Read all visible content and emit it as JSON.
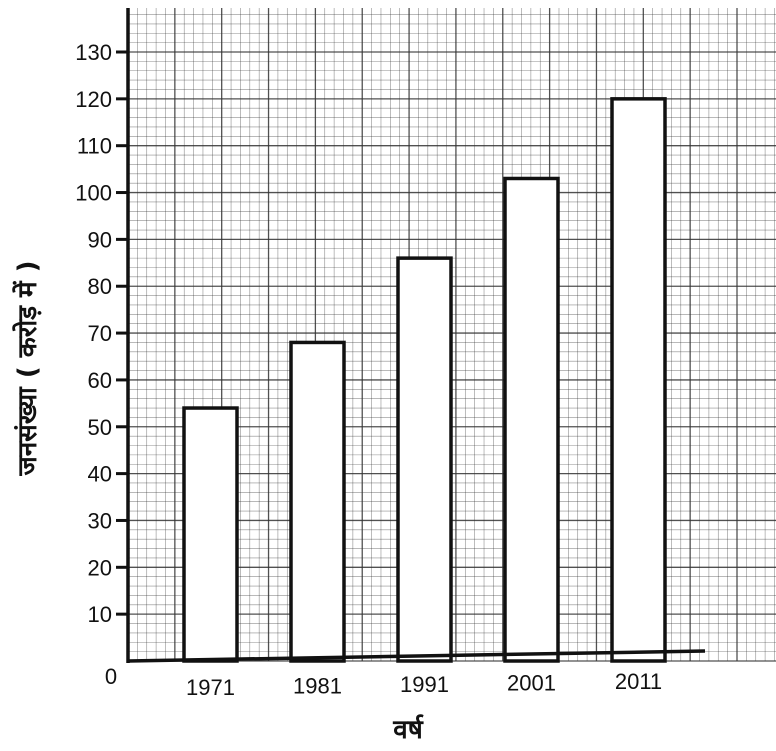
{
  "chart_data": {
    "type": "bar",
    "categories": [
      "1971",
      "1981",
      "1991",
      "2001",
      "2011"
    ],
    "values": [
      54,
      68,
      86,
      103,
      120
    ],
    "xlabel": "वर्ष",
    "ylabel": "जनसंख्या ( करोड़ में )",
    "ylim": [
      0,
      130
    ],
    "yticks": [
      "0",
      "10",
      "20",
      "30",
      "40",
      "50",
      "60",
      "70",
      "80",
      "90",
      "100",
      "110",
      "120",
      "130"
    ],
    "grid": true,
    "legend": "none",
    "colors": {
      "bar_fill": "#ffffff",
      "bar_stroke": "#111111",
      "grid": "#333333",
      "background": "#ffffff"
    }
  }
}
